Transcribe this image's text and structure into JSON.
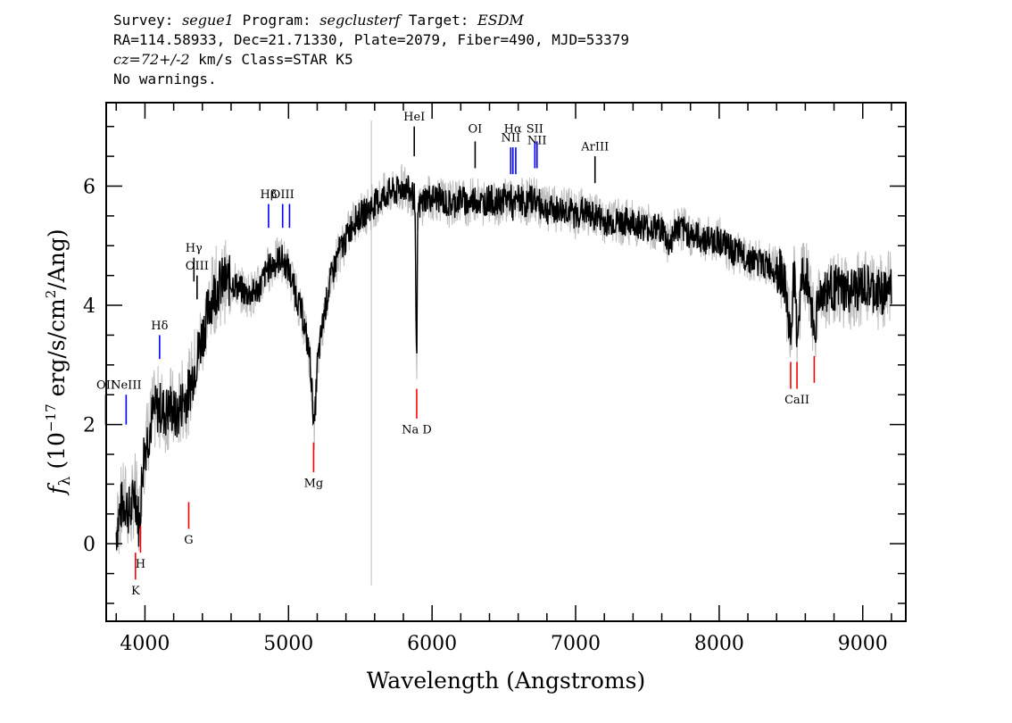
{
  "header": {
    "line1": {
      "survey_label": "Survey:",
      "survey": "segue1",
      "program_label": "Program:",
      "program": "segclusterf",
      "target_label": "Target:",
      "target": "ESDM"
    },
    "line2": "RA=114.58933, Dec=21.71330, Plate=2079, Fiber=490, MJD=53379",
    "line3": {
      "cz": "cz=72+/-2",
      "rest": " km/s Class=STAR K5"
    },
    "line4": "No warnings."
  },
  "chart_data": {
    "type": "line",
    "xlabel": "Wavelength (Angstroms)",
    "ylabel_parts": {
      "f": "f",
      "sub": "λ",
      "open": " (10",
      "exp": "−17",
      "mid": " erg/s/cm",
      "exp2": "2",
      "close": "/Ang)"
    },
    "xlim": [
      3730,
      9300
    ],
    "ylim": [
      -1.3,
      7.4
    ],
    "x_ticks": [
      4000,
      5000,
      6000,
      7000,
      8000,
      9000
    ],
    "y_ticks": [
      0,
      2,
      4,
      6
    ],
    "x_minor_step": 200,
    "y_minor_step": 0.5,
    "flux_color": "#000000",
    "error_color": "#bdbdbd",
    "spectrum": {
      "x": [
        3800,
        3830,
        3860,
        3900,
        3930,
        3960,
        3990,
        4020,
        4060,
        4100,
        4140,
        4180,
        4220,
        4260,
        4300,
        4340,
        4380,
        4420,
        4460,
        4500,
        4550,
        4600,
        4650,
        4700,
        4750,
        4800,
        4850,
        4900,
        4950,
        5000,
        5050,
        5100,
        5150,
        5180,
        5200,
        5250,
        5300,
        5350,
        5400,
        5450,
        5500,
        5550,
        5600,
        5650,
        5700,
        5750,
        5800,
        5850,
        5880,
        5893,
        5900,
        5950,
        6000,
        6050,
        6100,
        6150,
        6200,
        6250,
        6300,
        6350,
        6400,
        6450,
        6500,
        6550,
        6563,
        6600,
        6650,
        6700,
        6750,
        6800,
        6850,
        6900,
        6950,
        7000,
        7050,
        7100,
        7150,
        7200,
        7300,
        7400,
        7500,
        7600,
        7650,
        7700,
        7800,
        7900,
        8000,
        8100,
        8200,
        8300,
        8400,
        8450,
        8498,
        8520,
        8542,
        8580,
        8620,
        8662,
        8700,
        8800,
        8900,
        9000,
        9100,
        9200
      ],
      "y": [
        0.2,
        0.6,
        0.7,
        0.5,
        0.9,
        0.3,
        1.5,
        1.8,
        2.2,
        2.3,
        2.2,
        2.3,
        2.1,
        2.4,
        2.5,
        2.9,
        3.3,
        3.7,
        4.1,
        4.3,
        4.4,
        4.4,
        4.3,
        4.2,
        4.2,
        4.3,
        4.6,
        4.7,
        4.8,
        4.6,
        4.2,
        3.8,
        3.1,
        1.9,
        3.0,
        3.9,
        4.5,
        4.9,
        5.1,
        5.4,
        5.5,
        5.6,
        5.7,
        5.8,
        5.9,
        5.9,
        6.0,
        5.9,
        5.8,
        2.6,
        5.6,
        5.8,
        5.8,
        5.8,
        5.7,
        5.7,
        5.8,
        5.7,
        5.8,
        5.7,
        5.8,
        5.7,
        5.8,
        5.8,
        5.6,
        5.8,
        5.7,
        5.8,
        5.7,
        5.6,
        5.6,
        5.6,
        5.6,
        5.5,
        5.6,
        5.5,
        5.5,
        5.4,
        5.4,
        5.4,
        5.3,
        5.3,
        5.0,
        5.3,
        5.2,
        5.1,
        5.1,
        4.9,
        4.8,
        4.7,
        4.6,
        4.5,
        3.4,
        4.6,
        3.5,
        4.5,
        4.4,
        3.6,
        4.2,
        4.3,
        4.2,
        4.3,
        4.2,
        4.3
      ]
    },
    "line_markers": [
      {
        "label": "OII",
        "wl": 3727,
        "y0": 2.0,
        "y1": 2.5,
        "color": "#000000",
        "label_y": 2.6
      },
      {
        "label": "NeIII",
        "wl": 3869,
        "y0": 2.0,
        "y1": 2.5,
        "color": "#0000ff",
        "label_y": 2.6
      },
      {
        "label": "K",
        "wl": 3934,
        "y0": -0.6,
        "y1": -0.15,
        "color": "#ff0000",
        "label_y": -0.85
      },
      {
        "label": "H",
        "wl": 3969,
        "y0": -0.15,
        "y1": 0.3,
        "color": "#ff0000",
        "label_y": -0.4
      },
      {
        "label": "Hδ",
        "wl": 4102,
        "y0": 3.1,
        "y1": 3.5,
        "color": "#0000ff",
        "label_y": 3.6
      },
      {
        "label": "G",
        "wl": 4305,
        "y0": 0.25,
        "y1": 0.7,
        "color": "#ff0000",
        "label_y": 0.0
      },
      {
        "label": "Hγ",
        "wl": 4341,
        "y0": 4.4,
        "y1": 4.8,
        "color": "#000000",
        "label_y": 4.9
      },
      {
        "label": "OIII",
        "wl": 4363,
        "y0": 4.1,
        "y1": 4.5,
        "color": "#000000",
        "label_y": 4.6
      },
      {
        "label": "Hβ",
        "wl": 4861,
        "y0": 5.3,
        "y1": 5.7,
        "color": "#0000ff",
        "label_y": 5.8
      },
      {
        "label": "OIII",
        "wl": 4959,
        "y0": 5.3,
        "y1": 5.7,
        "color": "#0000ff",
        "label_y": 5.8
      },
      {
        "label": "OIII",
        "wl": 5007,
        "y0": 5.3,
        "y1": 5.7,
        "color": "#0000ff",
        "label_y": null
      },
      {
        "label": "Mg",
        "wl": 5175,
        "y0": 1.2,
        "y1": 1.7,
        "color": "#ff0000",
        "label_y": 0.95
      },
      {
        "label": "HeI",
        "wl": 5876,
        "y0": 6.5,
        "y1": 7.0,
        "color": "#000000",
        "label_y": 7.1
      },
      {
        "label": "Na D",
        "wl": 5893,
        "y0": 2.1,
        "y1": 2.6,
        "color": "#ff0000",
        "label_y": 1.85
      },
      {
        "label": "OI",
        "wl": 6300,
        "y0": 6.3,
        "y1": 6.75,
        "color": "#000000",
        "label_y": 6.9
      },
      {
        "label": "NII",
        "wl": 6548,
        "y0": 6.2,
        "y1": 6.65,
        "color": "#0000ff",
        "label_y": 6.75
      },
      {
        "label": "Hα",
        "wl": 6563,
        "y0": 6.2,
        "y1": 6.65,
        "color": "#0000ff",
        "label_y": 6.9
      },
      {
        "label": "NII",
        "wl": 6583,
        "y0": 6.2,
        "y1": 6.65,
        "color": "#0000ff",
        "label_y": null
      },
      {
        "label": "SII",
        "wl": 6716,
        "y0": 6.3,
        "y1": 6.75,
        "color": "#0000ff",
        "label_y": 6.9
      },
      {
        "label": "NII",
        "wl": 6731,
        "y0": 6.3,
        "y1": 6.75,
        "color": "#0000ff",
        "label_y": 6.7
      },
      {
        "label": "ArIII",
        "wl": 7135,
        "y0": 6.05,
        "y1": 6.5,
        "color": "#000000",
        "label_y": 6.6
      },
      {
        "label": "CaII",
        "wl": 8498,
        "y0": 2.6,
        "y1": 3.05,
        "color": "#ff0000",
        "label_y": null
      },
      {
        "label": "CaII",
        "wl": 8542,
        "y0": 2.6,
        "y1": 3.05,
        "color": "#ff0000",
        "label_y": 2.35
      },
      {
        "label": "CaII",
        "wl": 8662,
        "y0": 2.7,
        "y1": 3.15,
        "color": "#ff0000",
        "label_y": null
      }
    ]
  }
}
